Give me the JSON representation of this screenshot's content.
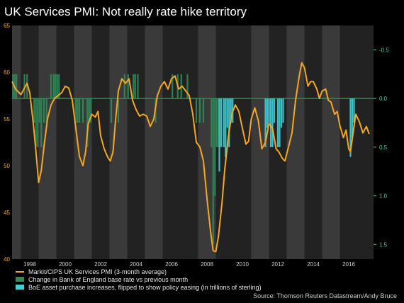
{
  "chart_data": {
    "type": "line",
    "title": "UK Services PMI: Not really rate hike territory",
    "source": "Source: Thomson Reuters Datastream/Andy Bruce",
    "xlim": [
      1997.5,
      2017.9
    ],
    "x_ticks": [
      "1998",
      "2000",
      "2002",
      "2004",
      "2006",
      "2008",
      "2010",
      "2012",
      "2014",
      "2016"
    ],
    "y_left": {
      "lim": [
        40,
        65
      ],
      "ticks": [
        "40",
        "45",
        "50",
        "55",
        "60",
        "65"
      ]
    },
    "y_right": {
      "lim": [
        1.65,
        -0.75
      ],
      "ticks": [
        "-0.5",
        "0.0",
        "0.5",
        "1.0",
        "1.5"
      ]
    },
    "shaded_periods": [
      [
        1997.5,
        1998.0
      ],
      [
        1999.0,
        2000.0
      ],
      [
        2001.0,
        2002.0
      ],
      [
        2003.0,
        2004.0
      ],
      [
        2005.0,
        2006.0
      ],
      [
        2008.0,
        2009.0
      ],
      [
        2011.0,
        2012.0
      ],
      [
        2013.0,
        2014.0
      ],
      [
        2015.0,
        2016.0
      ]
    ],
    "series": [
      {
        "name": "Markit/CIPS UK Services PMI (3-month average)",
        "axis": "left",
        "color": "#f5a623",
        "points": [
          [
            1997.5,
            59.0
          ],
          [
            1997.7,
            58.2
          ],
          [
            1997.9,
            57.8
          ],
          [
            1998.0,
            57.6
          ],
          [
            1998.2,
            58.3
          ],
          [
            1998.35,
            58.8
          ],
          [
            1998.5,
            57.8
          ],
          [
            1998.7,
            54.5
          ],
          [
            1998.85,
            51.5
          ],
          [
            1999.0,
            48.2
          ],
          [
            1999.15,
            49.5
          ],
          [
            1999.3,
            52.0
          ],
          [
            1999.5,
            55.0
          ],
          [
            1999.7,
            56.5
          ],
          [
            1999.9,
            57.2
          ],
          [
            2000.1,
            57.5
          ],
          [
            2000.3,
            57.8
          ],
          [
            2000.5,
            58.5
          ],
          [
            2000.7,
            58.3
          ],
          [
            2000.9,
            57.0
          ],
          [
            2001.1,
            54.0
          ],
          [
            2001.3,
            51.0
          ],
          [
            2001.5,
            50.0
          ],
          [
            2001.65,
            51.5
          ],
          [
            2001.8,
            54.5
          ],
          [
            2002.0,
            55.5
          ],
          [
            2002.2,
            55.2
          ],
          [
            2002.35,
            55.8
          ],
          [
            2002.5,
            53.2
          ],
          [
            2002.7,
            51.8
          ],
          [
            2002.9,
            50.9
          ],
          [
            2003.05,
            50.5
          ],
          [
            2003.2,
            51.5
          ],
          [
            2003.35,
            55.0
          ],
          [
            2003.5,
            58.0
          ],
          [
            2003.7,
            59.3
          ],
          [
            2003.9,
            58.8
          ],
          [
            2004.1,
            59.3
          ],
          [
            2004.3,
            57.0
          ],
          [
            2004.5,
            56.0
          ],
          [
            2004.7,
            55.3
          ],
          [
            2004.9,
            55.5
          ],
          [
            2005.1,
            55.3
          ],
          [
            2005.3,
            54.2
          ],
          [
            2005.5,
            55.0
          ],
          [
            2005.7,
            57.5
          ],
          [
            2005.9,
            58.5
          ],
          [
            2006.1,
            59.0
          ],
          [
            2006.3,
            58.2
          ],
          [
            2006.5,
            59.3
          ],
          [
            2006.7,
            59.6
          ],
          [
            2006.9,
            58.2
          ],
          [
            2007.1,
            58.5
          ],
          [
            2007.3,
            58.0
          ],
          [
            2007.5,
            57.5
          ],
          [
            2007.7,
            55.5
          ],
          [
            2007.9,
            52.5
          ],
          [
            2008.1,
            52.0
          ],
          [
            2008.3,
            50.5
          ],
          [
            2008.5,
            46.5
          ],
          [
            2008.7,
            43.0
          ],
          [
            2008.85,
            40.9
          ],
          [
            2009.0,
            40.8
          ],
          [
            2009.15,
            42.5
          ],
          [
            2009.35,
            46.0
          ],
          [
            2009.5,
            49.5
          ],
          [
            2009.7,
            53.0
          ],
          [
            2009.9,
            55.5
          ],
          [
            2010.1,
            56.5
          ],
          [
            2010.3,
            55.8
          ],
          [
            2010.5,
            54.0
          ],
          [
            2010.7,
            52.3
          ],
          [
            2010.85,
            52.6
          ],
          [
            2011.0,
            55.0
          ],
          [
            2011.2,
            56.2
          ],
          [
            2011.4,
            54.8
          ],
          [
            2011.6,
            51.8
          ],
          [
            2011.8,
            52.5
          ],
          [
            2012.0,
            54.5
          ],
          [
            2012.2,
            54.0
          ],
          [
            2012.4,
            51.8
          ],
          [
            2012.55,
            51.5
          ],
          [
            2012.75,
            50.8
          ],
          [
            2012.9,
            50.5
          ],
          [
            2013.1,
            52.0
          ],
          [
            2013.3,
            53.5
          ],
          [
            2013.5,
            57.0
          ],
          [
            2013.7,
            59.5
          ],
          [
            2013.85,
            61.0
          ],
          [
            2014.0,
            60.5
          ],
          [
            2014.2,
            58.5
          ],
          [
            2014.35,
            59.0
          ],
          [
            2014.5,
            59.0
          ],
          [
            2014.7,
            58.2
          ],
          [
            2014.85,
            57.2
          ],
          [
            2015.0,
            58.0
          ],
          [
            2015.2,
            58.2
          ],
          [
            2015.35,
            57.0
          ],
          [
            2015.5,
            56.8
          ],
          [
            2015.7,
            55.5
          ],
          [
            2015.85,
            55.8
          ],
          [
            2016.0,
            54.3
          ],
          [
            2016.2,
            53.0
          ],
          [
            2016.35,
            53.8
          ],
          [
            2016.5,
            51.8
          ],
          [
            2016.6,
            51.5
          ],
          [
            2016.75,
            53.5
          ],
          [
            2016.9,
            55.5
          ],
          [
            2017.1,
            54.7
          ],
          [
            2017.3,
            53.5
          ],
          [
            2017.5,
            54.2
          ],
          [
            2017.65,
            53.4
          ]
        ]
      },
      {
        "name": "Change in Bank of England base rate vs previous month",
        "axis": "right",
        "color": "#2e8b57",
        "bars": [
          [
            1997.55,
            -0.25
          ],
          [
            1997.65,
            -0.25
          ],
          [
            1997.75,
            -0.25
          ],
          [
            1998.2,
            -0.25
          ],
          [
            1998.35,
            -0.25
          ],
          [
            1998.75,
            0.25
          ],
          [
            1998.85,
            0.5
          ],
          [
            1998.95,
            0.5
          ],
          [
            1999.05,
            0.25
          ],
          [
            1999.15,
            0.5
          ],
          [
            1999.3,
            0.25
          ],
          [
            1999.45,
            0.25
          ],
          [
            1999.7,
            -0.25
          ],
          [
            1999.85,
            -0.25
          ],
          [
            1999.95,
            -0.25
          ],
          [
            2000.05,
            -0.25
          ],
          [
            2000.15,
            -0.25
          ],
          [
            2001.1,
            0.25
          ],
          [
            2001.2,
            0.25
          ],
          [
            2001.3,
            0.25
          ],
          [
            2001.5,
            0.25
          ],
          [
            2001.75,
            0.5
          ],
          [
            2001.85,
            0.25
          ],
          [
            2001.95,
            0.25
          ],
          [
            2003.1,
            0.25
          ],
          [
            2003.5,
            0.25
          ],
          [
            2003.85,
            -0.25
          ],
          [
            2004.05,
            -0.25
          ],
          [
            2004.35,
            -0.25
          ],
          [
            2004.45,
            -0.25
          ],
          [
            2004.6,
            -0.25
          ],
          [
            2005.6,
            0.25
          ],
          [
            2006.55,
            -0.25
          ],
          [
            2006.85,
            -0.25
          ],
          [
            2007.05,
            -0.25
          ],
          [
            2007.4,
            -0.25
          ],
          [
            2007.9,
            0.25
          ],
          [
            2008.1,
            0.25
          ],
          [
            2008.3,
            0.25
          ],
          [
            2008.75,
            0.5
          ],
          [
            2008.85,
            1.5
          ],
          [
            2008.95,
            1.0
          ],
          [
            2009.05,
            0.5
          ],
          [
            2009.15,
            0.5
          ]
        ]
      },
      {
        "name": "BoE asset purchase increases, flipped to show policy easing (in trillions of sterling)",
        "axis": "right",
        "color": "#40d0d8",
        "bars": [
          [
            2009.2,
            0.75
          ],
          [
            2009.3,
            0.5
          ],
          [
            2009.45,
            0.5
          ],
          [
            2009.55,
            0.6
          ],
          [
            2009.65,
            0.3
          ],
          [
            2009.75,
            0.5
          ],
          [
            2009.85,
            0.25
          ],
          [
            2009.95,
            0.25
          ],
          [
            2011.8,
            0.5
          ],
          [
            2011.9,
            0.3
          ],
          [
            2012.0,
            0.25
          ],
          [
            2012.1,
            0.5
          ],
          [
            2012.2,
            0.5
          ],
          [
            2012.3,
            0.25
          ],
          [
            2012.5,
            0.5
          ],
          [
            2012.6,
            0.5
          ],
          [
            2012.7,
            0.3
          ],
          [
            2012.8,
            0.25
          ],
          [
            2016.6,
            0.6
          ],
          [
            2016.7,
            0.4
          ],
          [
            2016.8,
            0.25
          ]
        ]
      }
    ],
    "legend_position": "bottom-left"
  }
}
